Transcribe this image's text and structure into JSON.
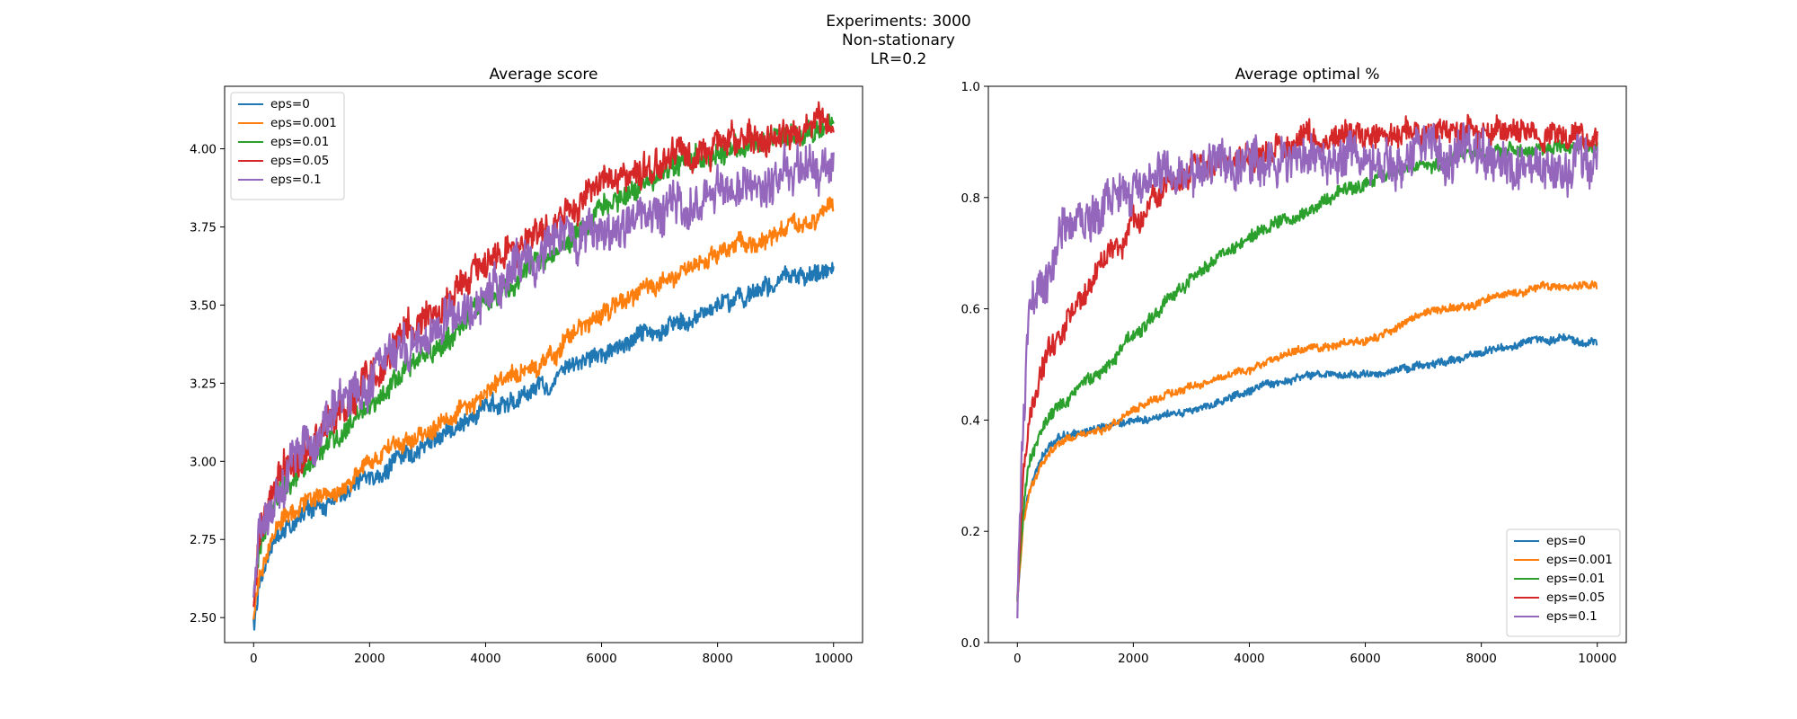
{
  "suptitle": [
    "Experiments: 3000",
    "Non-stationary",
    "LR=0.2"
  ],
  "colors": {
    "eps=0": "#1f77b4",
    "eps=0.001": "#ff7f0e",
    "eps=0.01": "#2ca02c",
    "eps=0.05": "#d62728",
    "eps=0.1": "#9467bd"
  },
  "chart_data": [
    {
      "type": "line",
      "title": "Average score",
      "xlabel": "",
      "ylabel": "",
      "xlim": [
        -500,
        10500
      ],
      "ylim": [
        2.42,
        4.2
      ],
      "xticks": [
        0,
        2000,
        4000,
        6000,
        8000,
        10000
      ],
      "yticks": [
        2.5,
        2.75,
        3.0,
        3.25,
        3.5,
        3.75,
        4.0
      ],
      "ytick_labels": [
        "2.50",
        "2.75",
        "3.00",
        "3.25",
        "3.50",
        "3.75",
        "4.00"
      ],
      "legend_position": "upper-left",
      "x": [
        0,
        100,
        300,
        600,
        1000,
        1500,
        2000,
        3000,
        4000,
        5000,
        6000,
        7000,
        8000,
        9000,
        10000
      ],
      "series": [
        {
          "name": "eps=0",
          "noise": 0.025,
          "values": [
            2.47,
            2.62,
            2.72,
            2.8,
            2.85,
            2.88,
            2.95,
            3.05,
            3.17,
            3.25,
            3.35,
            3.42,
            3.5,
            3.57,
            3.62
          ]
        },
        {
          "name": "eps=0.001",
          "noise": 0.025,
          "values": [
            2.5,
            2.64,
            2.76,
            2.84,
            2.87,
            2.92,
            3.0,
            3.1,
            3.22,
            3.33,
            3.48,
            3.58,
            3.66,
            3.73,
            3.8
          ]
        },
        {
          "name": "eps=0.01",
          "noise": 0.03,
          "values": [
            2.55,
            2.72,
            2.84,
            2.93,
            3.0,
            3.08,
            3.17,
            3.35,
            3.5,
            3.65,
            3.8,
            3.93,
            3.99,
            4.04,
            4.08
          ]
        },
        {
          "name": "eps=0.05",
          "noise": 0.045,
          "values": [
            2.57,
            2.76,
            2.88,
            2.98,
            3.06,
            3.16,
            3.27,
            3.47,
            3.62,
            3.75,
            3.88,
            3.96,
            4.01,
            4.06,
            4.08
          ]
        },
        {
          "name": "eps=0.1",
          "noise": 0.06,
          "values": [
            2.57,
            2.77,
            2.9,
            3.0,
            3.07,
            3.16,
            3.25,
            3.42,
            3.55,
            3.64,
            3.73,
            3.8,
            3.86,
            3.9,
            3.93
          ]
        }
      ]
    },
    {
      "type": "line",
      "title": "Average optimal %",
      "xlabel": "",
      "ylabel": "",
      "xlim": [
        -500,
        10500
      ],
      "ylim": [
        0.0,
        1.0
      ],
      "xticks": [
        0,
        2000,
        4000,
        6000,
        8000,
        10000
      ],
      "yticks": [
        0.0,
        0.2,
        0.4,
        0.6,
        0.8,
        1.0
      ],
      "ytick_labels": [
        "0.0",
        "0.2",
        "0.4",
        "0.6",
        "0.8",
        "1.0"
      ],
      "legend_position": "lower-right",
      "x": [
        0,
        100,
        200,
        400,
        700,
        1000,
        1500,
        2000,
        3000,
        4000,
        5000,
        6000,
        7000,
        8000,
        9000,
        10000
      ],
      "series": [
        {
          "name": "eps=0",
          "noise": 0.006,
          "values": [
            0.08,
            0.22,
            0.28,
            0.33,
            0.37,
            0.38,
            0.39,
            0.4,
            0.42,
            0.45,
            0.48,
            0.48,
            0.5,
            0.52,
            0.55,
            0.54
          ]
        },
        {
          "name": "eps=0.001",
          "noise": 0.006,
          "values": [
            0.08,
            0.22,
            0.27,
            0.32,
            0.36,
            0.37,
            0.38,
            0.42,
            0.46,
            0.49,
            0.53,
            0.54,
            0.59,
            0.61,
            0.64,
            0.64
          ]
        },
        {
          "name": "eps=0.01",
          "noise": 0.01,
          "values": [
            0.08,
            0.24,
            0.32,
            0.38,
            0.42,
            0.45,
            0.49,
            0.55,
            0.66,
            0.73,
            0.78,
            0.83,
            0.86,
            0.88,
            0.89,
            0.89
          ]
        },
        {
          "name": "eps=0.05",
          "noise": 0.02,
          "values": [
            0.08,
            0.3,
            0.4,
            0.5,
            0.56,
            0.61,
            0.68,
            0.76,
            0.86,
            0.88,
            0.9,
            0.91,
            0.92,
            0.92,
            0.92,
            0.91
          ]
        },
        {
          "name": "eps=0.1",
          "noise": 0.035,
          "values": [
            0.08,
            0.4,
            0.55,
            0.66,
            0.73,
            0.77,
            0.8,
            0.82,
            0.85,
            0.86,
            0.87,
            0.87,
            0.87,
            0.87,
            0.86,
            0.86
          ]
        }
      ]
    }
  ]
}
